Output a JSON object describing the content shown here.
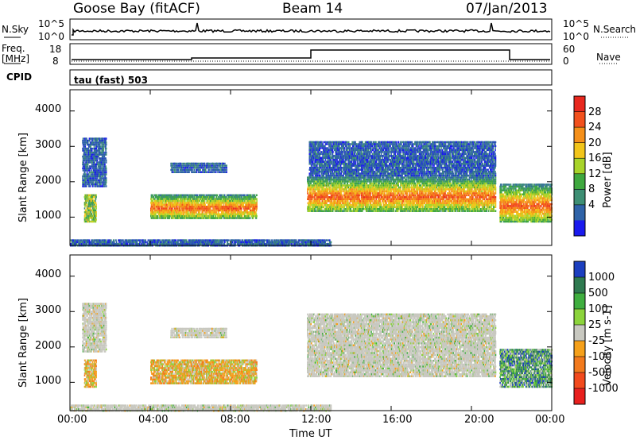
{
  "header": {
    "title_left": "Goose Bay (fitACF)",
    "title_center": "Beam 14",
    "title_right": "07/Jan/2013"
  },
  "top_panels": {
    "nsky_label": "N.Sky",
    "nsearch_label": "N.Search",
    "nsky_ticks": [
      "10^5",
      "10^0"
    ],
    "nsky_right_ticks": [
      "10^5",
      "10^0"
    ],
    "freq_label": "Freq.",
    "freq_unit": "[MHz]",
    "freq_ticks": [
      "18",
      "8"
    ],
    "nave_label": "Nave",
    "nave_ticks": [
      "60",
      "0"
    ],
    "cpid_label": "CPID",
    "cpid_value": "tau (fast) 503"
  },
  "chart_data": [
    {
      "type": "heatmap",
      "panel": "power",
      "ylabel": "Slant Range [km]",
      "xlabel": "Time UT",
      "ylim": [
        200,
        4600
      ],
      "xlim_hours": [
        0,
        24
      ],
      "y_ticks": [
        "1000",
        "2000",
        "3000",
        "4000"
      ],
      "colorbar": {
        "label": "Power [dB]",
        "ticks": [
          "28",
          "24",
          "20",
          "16",
          "12",
          "8",
          "4"
        ],
        "colors": [
          "#e8281e",
          "#f2511d",
          "#f5901a",
          "#f2c51a",
          "#a8d42a",
          "#3fa83f",
          "#3e8f74",
          "#2f63a8",
          "#1a1aee"
        ]
      },
      "regions": [
        {
          "t0": 0.7,
          "t1": 1.3,
          "r0": 900,
          "r1": 1700,
          "level": "mid"
        },
        {
          "t0": 0.6,
          "t1": 1.8,
          "r0": 1900,
          "r1": 3300,
          "level": "low"
        },
        {
          "t0": 4.0,
          "t1": 9.3,
          "r0": 1000,
          "r1": 1700,
          "level": "high"
        },
        {
          "t0": 5.0,
          "t1": 7.8,
          "r0": 2300,
          "r1": 2600,
          "level": "low"
        },
        {
          "t0": 11.8,
          "t1": 21.2,
          "r0": 1200,
          "r1": 2200,
          "level": "high"
        },
        {
          "t0": 11.9,
          "t1": 21.2,
          "r0": 2200,
          "r1": 3200,
          "level": "low"
        },
        {
          "t0": 21.4,
          "t1": 24.0,
          "r0": 900,
          "r1": 2000,
          "level": "high"
        },
        {
          "t0": 0.0,
          "t1": 13.0,
          "r0": 220,
          "r1": 420,
          "level": "low"
        }
      ]
    },
    {
      "type": "heatmap",
      "panel": "velocity",
      "ylabel": "Slant Range [km]",
      "xlabel": "Time UT",
      "ylim": [
        200,
        4600
      ],
      "xlim_hours": [
        0,
        24
      ],
      "y_ticks": [
        "1000",
        "2000",
        "3000",
        "4000"
      ],
      "colorbar": {
        "label": "Velocity [m s-1]",
        "ticks": [
          "1000",
          "500",
          "100",
          "25",
          "-25",
          "-100",
          "-500",
          "-1000"
        ],
        "colors": [
          "#1c3fbf",
          "#2f7a50",
          "#3fae3f",
          "#8cd43c",
          "#c8c8c0",
          "#f5a01a",
          "#f27a1d",
          "#f24a1d",
          "#e8201e"
        ]
      },
      "regions": [
        {
          "t0": 0.7,
          "t1": 1.3,
          "r0": 900,
          "r1": 1700,
          "level": "neg"
        },
        {
          "t0": 0.6,
          "t1": 1.8,
          "r0": 1900,
          "r1": 3300,
          "level": "zero"
        },
        {
          "t0": 4.0,
          "t1": 9.3,
          "r0": 1000,
          "r1": 1700,
          "level": "neg"
        },
        {
          "t0": 5.0,
          "t1": 7.8,
          "r0": 2300,
          "r1": 2600,
          "level": "zero"
        },
        {
          "t0": 11.8,
          "t1": 21.2,
          "r0": 1200,
          "r1": 3000,
          "level": "zero"
        },
        {
          "t0": 21.4,
          "t1": 24.0,
          "r0": 900,
          "r1": 2000,
          "level": "pos"
        },
        {
          "t0": 0.0,
          "t1": 13.0,
          "r0": 220,
          "r1": 420,
          "level": "zero"
        }
      ]
    }
  ],
  "x_axis": {
    "ticks": [
      "00:00",
      "04:00",
      "08:00",
      "12:00",
      "16:00",
      "20:00",
      "00:00"
    ],
    "label": "Time UT"
  }
}
